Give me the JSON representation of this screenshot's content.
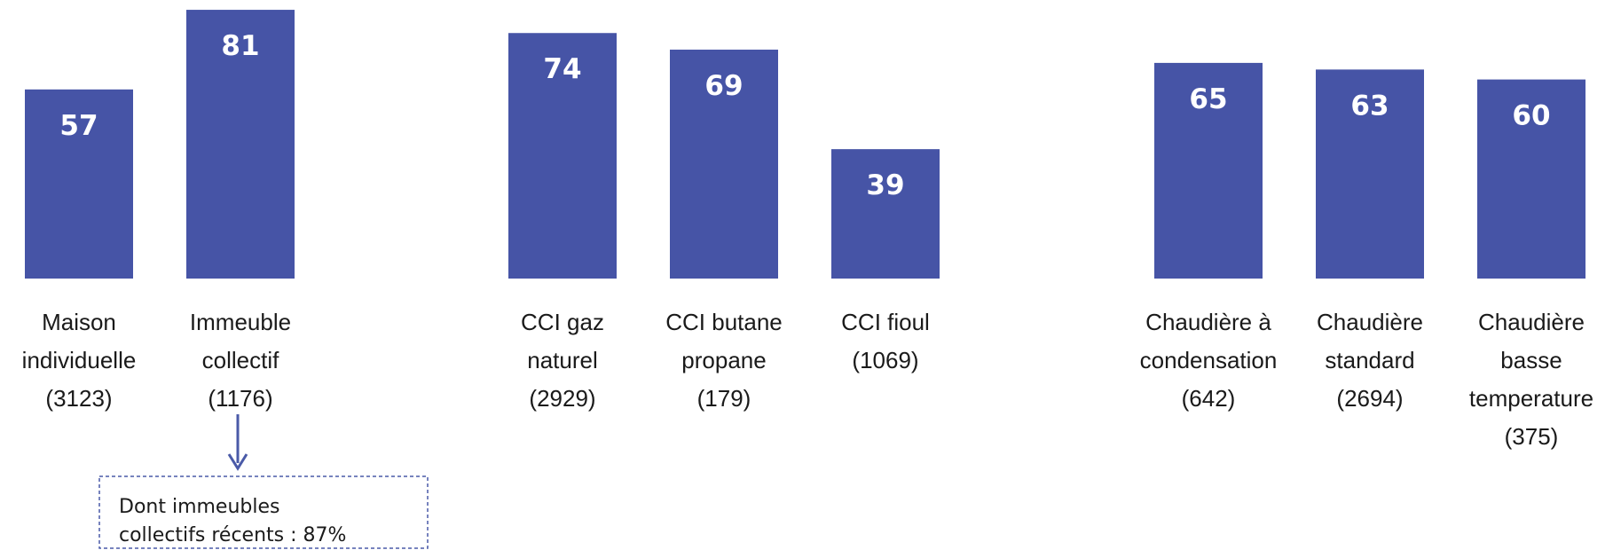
{
  "chart_data": [
    {
      "type": "bar",
      "color": "#4654a6",
      "categories": [
        [
          "Maison",
          "individuelle",
          "(3123)"
        ],
        [
          "Immeuble",
          "collectif",
          "(1176)"
        ]
      ],
      "values": [
        57,
        81
      ],
      "annotation": [
        "Dont immeubles",
        "collectifs récents : 87%"
      ]
    },
    {
      "type": "bar",
      "color": "#4654a6",
      "categories": [
        [
          "CCI gaz",
          "naturel",
          "(2929)"
        ],
        [
          "CCI butane",
          "propane",
          "(179)"
        ],
        [
          "CCI fioul",
          "(1069)"
        ]
      ],
      "values": [
        74,
        69,
        39
      ]
    },
    {
      "type": "bar",
      "color": "#4654a6",
      "categories": [
        [
          "Chaudière à",
          "condensation",
          "(642)"
        ],
        [
          "Chaudière",
          "standard",
          "(2694)"
        ],
        [
          "Chaudière",
          "basse",
          "temperature",
          "(375)"
        ]
      ],
      "values": [
        65,
        63,
        60
      ]
    }
  ]
}
